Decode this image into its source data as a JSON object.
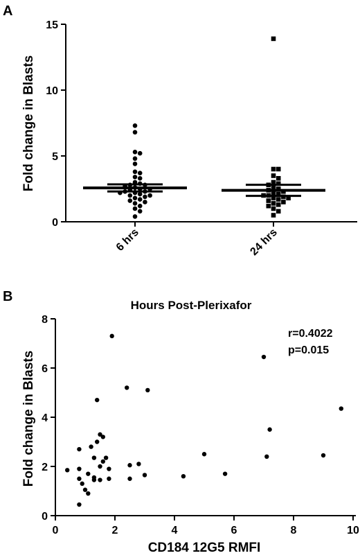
{
  "chart_data": [
    {
      "panel": "A",
      "type": "scatter",
      "title": "",
      "xlabel": "",
      "ylabel": "Fold change in  Blasts",
      "ylim": [
        0,
        15
      ],
      "yticks": [
        0,
        5,
        10,
        15
      ],
      "categories": [
        "6 hrs",
        "24 hrs"
      ],
      "series": [
        {
          "marker": "circle",
          "values": [
            7.3,
            6.8,
            5.3,
            5.2,
            4.8,
            4.4,
            3.8,
            3.7,
            3.4,
            3.3,
            3.0,
            2.9,
            2.8,
            2.8,
            2.7,
            2.6,
            2.5,
            2.5,
            2.4,
            2.3,
            2.3,
            2.2,
            2.2,
            2.1,
            2.0,
            2.0,
            1.9,
            1.8,
            1.7,
            1.6,
            1.5,
            1.4,
            1.2,
            1.0,
            0.8,
            0.4
          ],
          "mean": 2.57,
          "sem": 0.27
        },
        {
          "marker": "square",
          "values": [
            13.9,
            4.0,
            4.0,
            3.5,
            3.3,
            3.0,
            2.9,
            2.8,
            2.6,
            2.5,
            2.4,
            2.3,
            2.2,
            2.1,
            2.0,
            2.0,
            1.9,
            1.8,
            1.8,
            1.7,
            1.6,
            1.5,
            1.4,
            1.3,
            1.2,
            1.0,
            0.8,
            0.5
          ],
          "mean": 2.39,
          "sem": 0.42
        }
      ]
    },
    {
      "panel": "B",
      "type": "scatter",
      "title": "Hours Post-Plerixafor",
      "xlabel": "CD184 12G5 RMFI",
      "ylabel": "Fold change in  Blasts",
      "xlim": [
        0,
        10
      ],
      "ylim": [
        0,
        8
      ],
      "xticks": [
        0,
        2,
        4,
        6,
        8,
        10
      ],
      "yticks": [
        0,
        2,
        4,
        6,
        8
      ],
      "annotations": [
        "r=0.4022",
        "p=0.015"
      ],
      "points": [
        {
          "x": 0.4,
          "y": 1.85
        },
        {
          "x": 0.8,
          "y": 2.7
        },
        {
          "x": 0.8,
          "y": 1.9
        },
        {
          "x": 0.8,
          "y": 1.5
        },
        {
          "x": 0.8,
          "y": 0.45
        },
        {
          "x": 0.9,
          "y": 1.3
        },
        {
          "x": 1.0,
          "y": 1.05
        },
        {
          "x": 1.1,
          "y": 1.7
        },
        {
          "x": 1.1,
          "y": 0.9
        },
        {
          "x": 1.2,
          "y": 2.8
        },
        {
          "x": 1.3,
          "y": 2.35
        },
        {
          "x": 1.3,
          "y": 1.55
        },
        {
          "x": 1.3,
          "y": 1.45
        },
        {
          "x": 1.4,
          "y": 4.7
        },
        {
          "x": 1.4,
          "y": 3.0
        },
        {
          "x": 1.5,
          "y": 3.3
        },
        {
          "x": 1.5,
          "y": 2.0
        },
        {
          "x": 1.5,
          "y": 1.45
        },
        {
          "x": 1.6,
          "y": 3.2
        },
        {
          "x": 1.6,
          "y": 2.2
        },
        {
          "x": 1.7,
          "y": 2.35
        },
        {
          "x": 1.8,
          "y": 1.9
        },
        {
          "x": 1.8,
          "y": 1.5
        },
        {
          "x": 1.9,
          "y": 7.3
        },
        {
          "x": 2.4,
          "y": 5.2
        },
        {
          "x": 2.5,
          "y": 2.05
        },
        {
          "x": 2.5,
          "y": 1.5
        },
        {
          "x": 2.8,
          "y": 2.1
        },
        {
          "x": 3.0,
          "y": 1.65
        },
        {
          "x": 3.1,
          "y": 5.1
        },
        {
          "x": 4.3,
          "y": 1.6
        },
        {
          "x": 5.0,
          "y": 2.5
        },
        {
          "x": 5.7,
          "y": 1.7
        },
        {
          "x": 7.0,
          "y": 6.45
        },
        {
          "x": 7.1,
          "y": 2.4
        },
        {
          "x": 7.2,
          "y": 3.5
        },
        {
          "x": 9.0,
          "y": 2.45
        },
        {
          "x": 9.6,
          "y": 4.35
        }
      ]
    }
  ]
}
